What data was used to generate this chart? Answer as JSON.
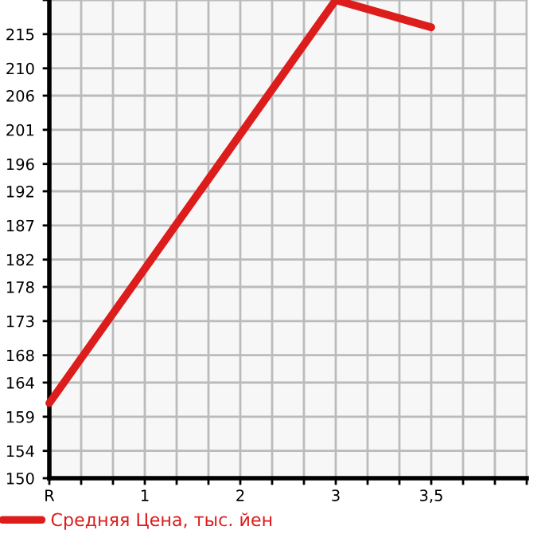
{
  "chart_data": {
    "type": "line",
    "categories": [
      "R",
      "1",
      "2",
      "3",
      "3,5"
    ],
    "series": [
      {
        "name": "Средняя Цена, тыс. йен",
        "color": "#dd1c1c",
        "values": [
          161,
          null,
          null,
          220,
          216
        ]
      }
    ],
    "ylim": [
      150,
      220
    ],
    "yticks": [
      150,
      154,
      159,
      164,
      168,
      173,
      178,
      182,
      187,
      192,
      196,
      201,
      206,
      210,
      215,
      {
        "value": 220,
        "label": null
      }
    ],
    "grid": true,
    "legend": "bottom left",
    "marker": "none",
    "line_style": "solid"
  }
}
